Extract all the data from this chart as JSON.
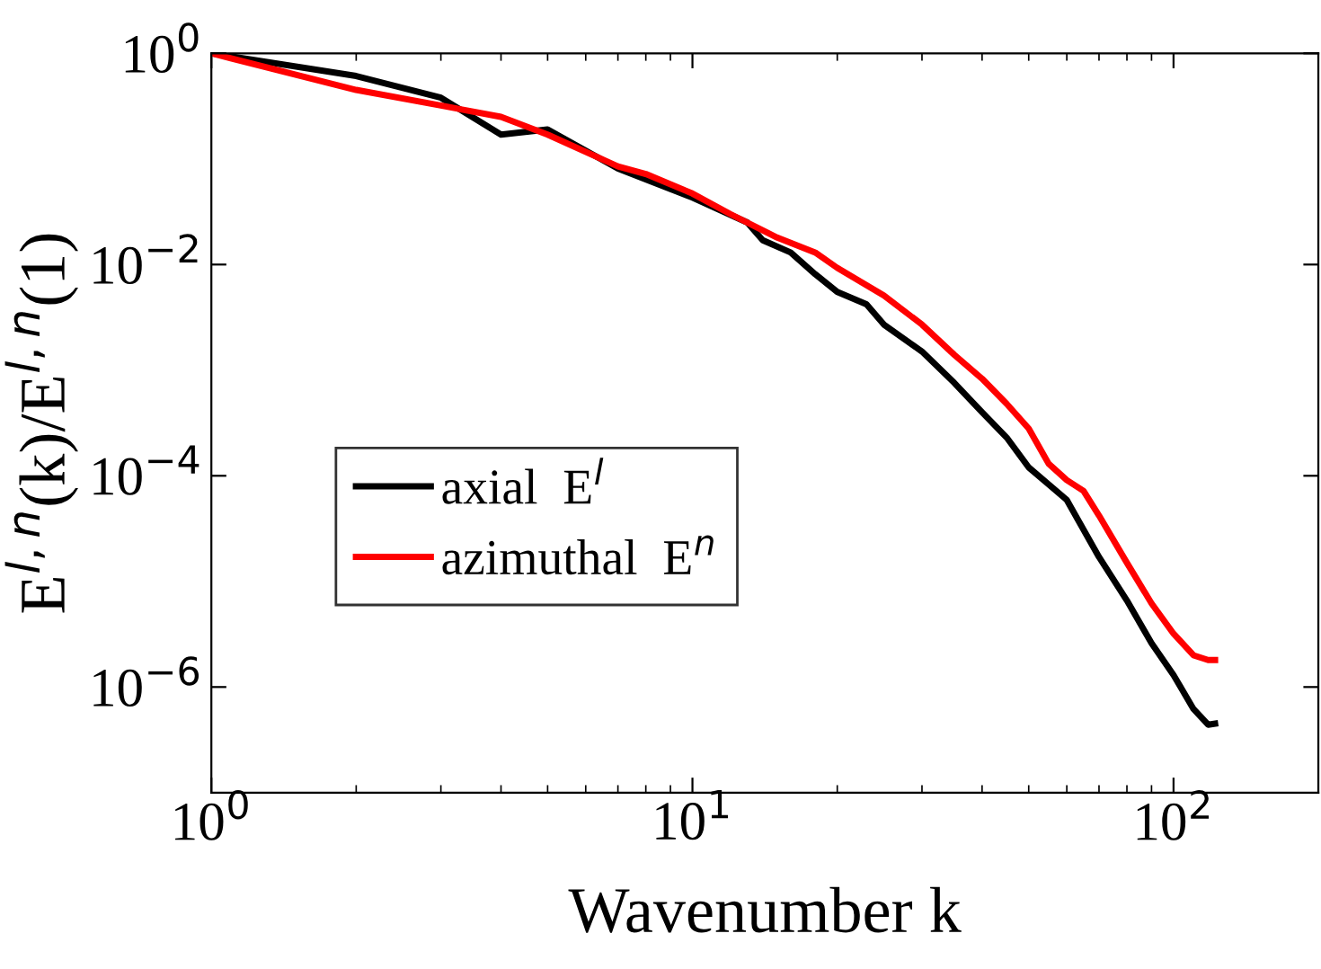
{
  "chart_data": {
    "type": "line",
    "xlabel": "Wavenumber k",
    "ylabel": "E$^{l,n}$(k)/E$^{l,n}$(1)",
    "log": "xy",
    "grid": false,
    "legend": "center left",
    "line_style": "solid",
    "marker": "none",
    "xlim": [
      1,
      200
    ],
    "xticks": [
      {
        "value": 1,
        "label": "10$^{0}$"
      },
      {
        "value": 10,
        "label": "10$^{1}$"
      },
      {
        "value": 100,
        "label": "10$^{2}$"
      }
    ],
    "ylim": [
      1e-07,
      1
    ],
    "yticks": [
      {
        "value": 1e-06,
        "label": "10$^{−6}$"
      },
      {
        "value": 0.0001,
        "label": "10$^{−4}$"
      },
      {
        "value": 0.01,
        "label": "10$^{−2}$"
      },
      {
        "value": 1,
        "label": "10$^{0}$"
      }
    ],
    "series": [
      {
        "name": "axial  E$^{l}$",
        "color": "#000000",
        "x": [
          1,
          2,
          3,
          4,
          5,
          7,
          10,
          13,
          14,
          16,
          18,
          20,
          23,
          25,
          30,
          35,
          40,
          45,
          50,
          55,
          60,
          70,
          80,
          90,
          100,
          110,
          118,
          122
        ],
        "values": [
          1,
          0.61,
          0.38,
          0.17,
          0.19,
          0.081,
          0.043,
          0.025,
          0.017,
          0.013,
          0.0081,
          0.0055,
          0.0042,
          0.0027,
          0.0015,
          0.00076,
          0.0004,
          0.00023,
          0.00012,
          8.3e-05,
          5.9e-05,
          1.7e-05,
          6.6e-06,
          2.6e-06,
          1.3e-06,
          6.2e-07,
          4.4e-07,
          4.5e-07
        ]
      },
      {
        "name": "azimuthal  E$^{n}$",
        "color": "#ff0000",
        "x": [
          1,
          2,
          3,
          4,
          5,
          7,
          8,
          10,
          12,
          15,
          18,
          20,
          25,
          30,
          35,
          40,
          45,
          50,
          55,
          60,
          65,
          70,
          80,
          90,
          100,
          110,
          118,
          122
        ],
        "values": [
          1,
          0.45,
          0.32,
          0.25,
          0.17,
          0.085,
          0.072,
          0.047,
          0.03,
          0.018,
          0.013,
          0.0093,
          0.0051,
          0.0027,
          0.0014,
          0.00083,
          0.00048,
          0.00028,
          0.00013,
          9.1e-05,
          7.2e-05,
          4.2e-05,
          1.5e-05,
          6.2e-06,
          3.2e-06,
          2e-06,
          1.8e-06,
          1.8e-06
        ]
      }
    ]
  }
}
